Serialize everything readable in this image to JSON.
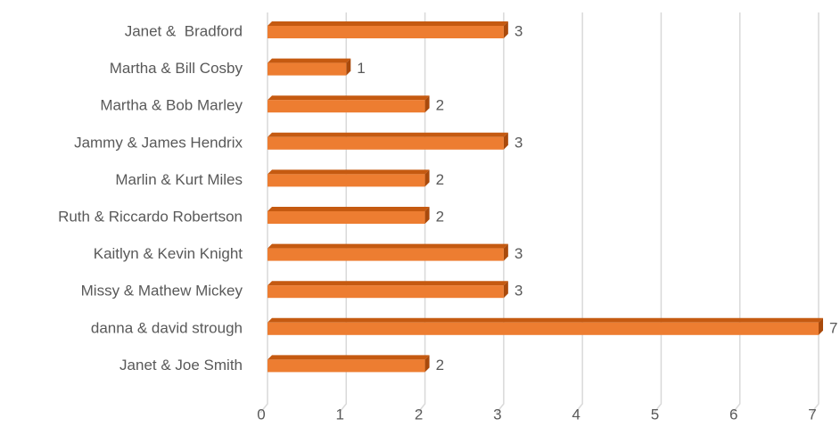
{
  "chart_data": {
    "type": "bar",
    "orientation": "horizontal",
    "categories": [
      "Janet &  Bradford",
      "Martha & Bill Cosby",
      "Martha & Bob Marley",
      "Jammy & James Hendrix",
      "Marlin & Kurt Miles",
      "Ruth & Riccardo Robertson",
      "Kaitlyn & Kevin Knight",
      "Missy & Mathew Mickey",
      "danna & david strough",
      "Janet & Joe Smith"
    ],
    "values": [
      3,
      1,
      2,
      3,
      2,
      2,
      3,
      3,
      7,
      2
    ],
    "color": "#ed7d31",
    "xlim": [
      0,
      7
    ],
    "xticks": [
      0,
      1,
      2,
      3,
      4,
      5,
      6,
      7
    ],
    "grid": true
  }
}
